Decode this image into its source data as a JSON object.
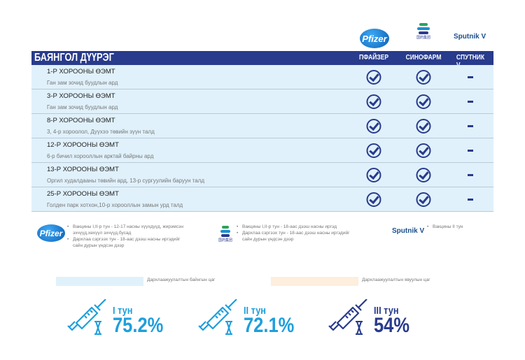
{
  "logos": {
    "pfizer": "Pfizer",
    "sinopharm": "国药集团",
    "sinopharm_sub": "SINOPHARM",
    "sputnik": "Sputnik V"
  },
  "header": {
    "title": "БАЯНГОЛ ДҮҮРЭГ",
    "columns": [
      "ПФАЙЗЕР",
      "СИНОФАРМ",
      "СПУТНИК V"
    ]
  },
  "rows": [
    {
      "name": "1-Р ХОРООНЫ ӨЭМТ",
      "address": "Ган зам зочид буудлын ард",
      "pfizer": true,
      "sinopharm": true,
      "sputnik": false
    },
    {
      "name": "3-Р ХОРООНЫ ӨЭМТ",
      "address": "Ган зам зочид буудлын ард",
      "pfizer": true,
      "sinopharm": true,
      "sputnik": false
    },
    {
      "name": "8-Р ХОРООНЫ ӨЭМТ",
      "address": "3, 4-р хороолол, Дүүхээ төвийн зүүн талд",
      "pfizer": true,
      "sinopharm": true,
      "sputnik": false
    },
    {
      "name": "12-Р ХОРООНЫ ӨЭМТ",
      "address": "6-р бичил хорооллын арктай байрны ард",
      "pfizer": true,
      "sinopharm": true,
      "sputnik": false
    },
    {
      "name": "13-Р ХОРООНЫ ӨЭМТ",
      "address": "Оргил худалдааны төвийн ард, 13-р сургуулийн баруун талд",
      "pfizer": true,
      "sinopharm": true,
      "sputnik": false
    },
    {
      "name": "25-Р ХОРООНЫ ӨЭМТ",
      "address": "Голден парк хотхон,10-р хорооллын замын урд талд",
      "pfizer": true,
      "sinopharm": true,
      "sputnik": false
    }
  ],
  "legend": {
    "pfizer": [
      "Вакцины I,II-р тун - 12-17 насны хүүхдүүд, жирэмсэн эхчүүд,хөхүүл эхчүүд,бусад",
      "Дархлаа сэргээх тун - 18-аас дээш насны иргэдийг сайн дурын үндсэн дээр"
    ],
    "sinopharm": [
      "Вакцины I,II-р тун - 18-аас дээш насны иргэд",
      "Дархлаа сэргээх тун - 18-аас дээш насны иргэдийг сайн дурын үндсэн дээр"
    ],
    "sputnik": [
      "Вакцины II тун"
    ]
  },
  "schedule": {
    "permanent": "Дархлаажуулалтын байнгын цаг",
    "mobile": "Дархлаажуулалтын явуулын цаг",
    "colors": {
      "permanent": "#e0f1fb",
      "mobile": "#fdeedd"
    }
  },
  "stats": [
    {
      "label": "I тун",
      "value": "75.2%",
      "color": "#1e9fdc"
    },
    {
      "label": "II тун",
      "value": "72.1%",
      "color": "#1e9fdc"
    },
    {
      "label": "III тун",
      "value": "54%",
      "color": "#283b8c"
    }
  ]
}
